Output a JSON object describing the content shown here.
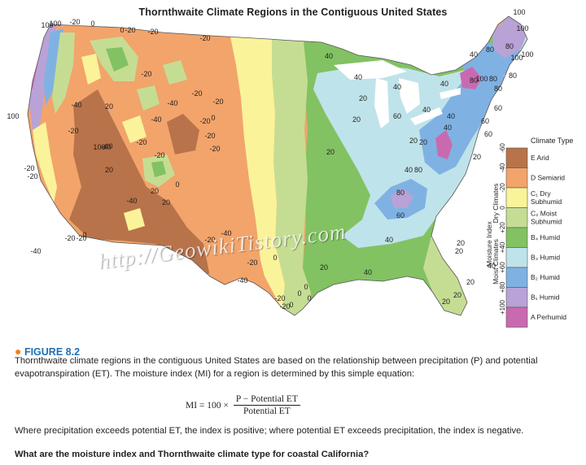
{
  "map": {
    "title": "Thornthwaite Climate Regions in the Contiguous United States",
    "isoline_labels": [
      "100",
      "-20",
      "0",
      "0",
      "-20",
      "-20",
      "100",
      "-40",
      "-40",
      "100",
      "-20",
      "-40",
      "-40",
      "0",
      "-20",
      "-20",
      "-20",
      "-40",
      "-20",
      "20",
      "20",
      "-20",
      "-20",
      "-20",
      "-40",
      "-40",
      "-20",
      "-20",
      "20",
      "-20",
      "0",
      "0",
      "-20",
      "-20",
      "-20",
      "20",
      "-40",
      "-20",
      "-20",
      "-40",
      "0",
      "40",
      "20",
      "40",
      "20",
      "0",
      "20",
      "40",
      "20",
      "20",
      "40",
      "-20",
      "0",
      "0",
      "-20",
      "0",
      "40",
      "60",
      "20",
      "40",
      "40",
      "40",
      "80",
      "100",
      "80",
      "100",
      "80",
      "100",
      "80",
      "60",
      "60",
      "80",
      "80",
      "60",
      "20",
      "40",
      "20",
      "20",
      "20",
      "40",
      "80",
      "60",
      "40",
      "40",
      "20",
      "20",
      "100",
      "100",
      "100",
      "80"
    ],
    "colors": {
      "E_arid": "#b8734a",
      "D_semiarid": "#f2a46b",
      "C1_dry_subhumid": "#fbf39a",
      "C2_moist_subhumid": "#c5dd93",
      "B4_humid": "#82c262",
      "B3_humid": "#bfe3ea",
      "B2_humid": "#7fb2e3",
      "B1_humid": "#b9a2d6",
      "A_perhumid": "#c96ab0",
      "water": "#ffffff"
    }
  },
  "legend": {
    "header": "Climate Type",
    "axis_title": "Moisture Index",
    "dry_label": "Dry Climates",
    "moist_label": "Moist Climates",
    "ticks": [
      "-60",
      "-40",
      "-20",
      "0",
      "+20",
      "+40",
      "+60",
      "+80",
      "+100"
    ],
    "items": [
      {
        "label": "E Arid",
        "color": "#b8734a"
      },
      {
        "label": "D Semiarid",
        "color": "#f2a46b"
      },
      {
        "label": "C₁ Dry Subhumid",
        "color": "#fbf39a"
      },
      {
        "label": "C₂ Moist Subhumid",
        "color": "#c5dd93"
      },
      {
        "label": "B₄ Humid",
        "color": "#82c262"
      },
      {
        "label": "B₃ Humid",
        "color": "#bfe3ea"
      },
      {
        "label": "B₂ Humid",
        "color": "#7fb2e3"
      },
      {
        "label": "B₁ Humid",
        "color": "#b9a2d6"
      },
      {
        "label": "A Perhumid",
        "color": "#c96ab0"
      }
    ]
  },
  "watermark": "http://GeowikiTistory.com",
  "figure": {
    "label": "FIGURE 8.2",
    "caption": "Thornthwaite climate regions in the contiguous United States are based on the relationship between precipitation (P) and potential evapotranspiration (ET). The moisture index (MI) for a region is determined by this simple equation:",
    "eq_lhs": "MI = 100 ×",
    "eq_num": "P − Potential ET",
    "eq_den": "Potential ET",
    "caption2": "Where precipitation exceeds potential ET, the index is positive; where potential ET exceeds precipitation, the index is negative.",
    "question": "What are the moisture index and Thornthwaite climate type for coastal California?"
  }
}
